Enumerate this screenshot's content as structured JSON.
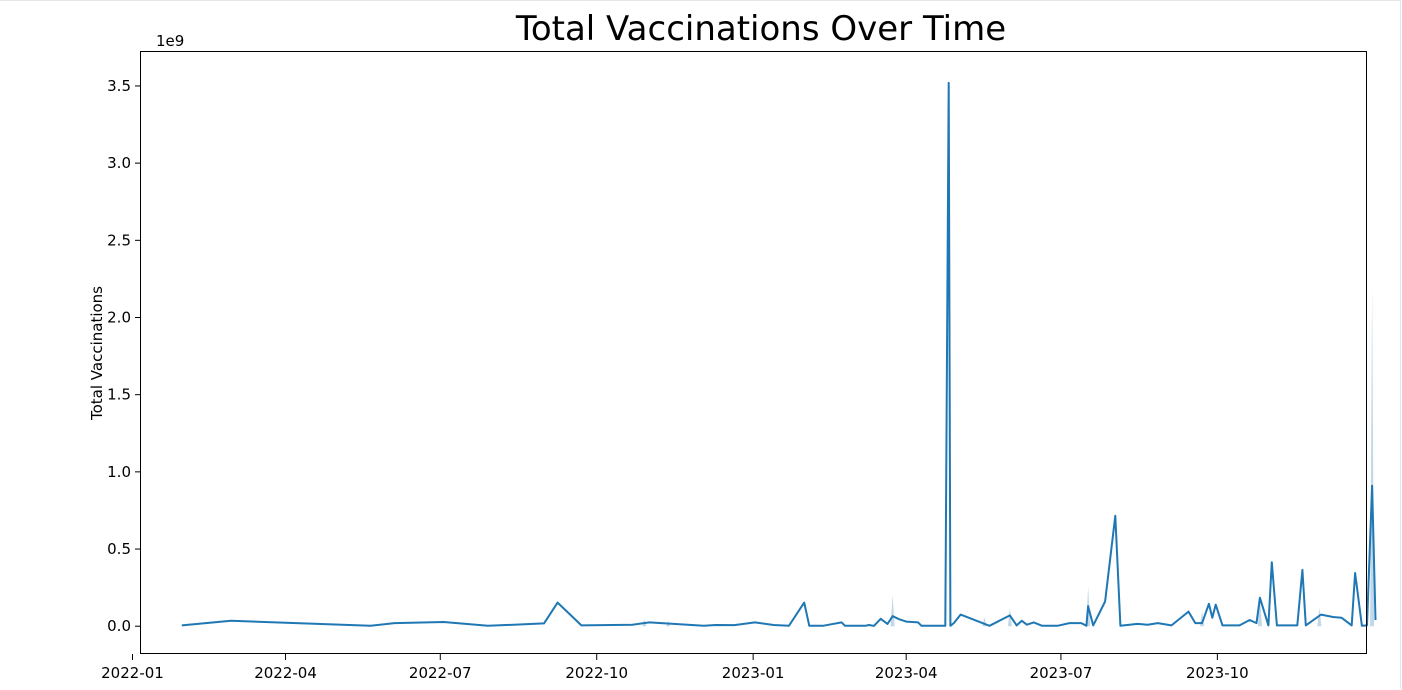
{
  "chart_data": {
    "type": "line",
    "title": "Total Vaccinations Over Time",
    "xlabel": "",
    "ylabel": "Total Vaccinations",
    "y_offset_label": "1e9",
    "xlim": [
      "2022-01-06",
      "2023-12-28"
    ],
    "ylim": [
      -0.18,
      3.72
    ],
    "x_ticks": [
      "2022-01",
      "2022-04",
      "2022-07",
      "2022-10",
      "2023-01",
      "2023-04",
      "2023-07",
      "2023-10"
    ],
    "y_ticks": [
      "0.0",
      "0.5",
      "1.0",
      "1.5",
      "2.0",
      "2.5",
      "3.0",
      "3.5"
    ],
    "grid": false,
    "line_color": "#1f77b4",
    "band_color": "#a6c8e0",
    "series": [
      {
        "points": [
          [
            "2022-01-30",
            0.005
          ],
          [
            "2022-02-28",
            0.035
          ],
          [
            "2022-05-21",
            0.003
          ],
          [
            "2022-06-04",
            0.02
          ],
          [
            "2022-07-03",
            0.027
          ],
          [
            "2022-07-29",
            0.003
          ],
          [
            "2022-08-31",
            0.018
          ],
          [
            "2022-09-08",
            0.153
          ],
          [
            "2022-09-22",
            0.005
          ],
          [
            "2022-10-22",
            0.01
          ],
          [
            "2022-11-01",
            0.025
          ],
          [
            "2022-12-03",
            0.003
          ],
          [
            "2022-12-10",
            0.008
          ],
          [
            "2022-12-21",
            0.007
          ],
          [
            "2023-01-02",
            0.025
          ],
          [
            "2023-01-13",
            0.008
          ],
          [
            "2023-01-22",
            0.003
          ],
          [
            "2023-01-31",
            0.153
          ],
          [
            "2023-02-03",
            0.003
          ],
          [
            "2023-02-11",
            0.003
          ],
          [
            "2023-02-22",
            0.025
          ],
          [
            "2023-02-24",
            0.003
          ],
          [
            "2023-03-08",
            0.003
          ],
          [
            "2023-03-10",
            0.008
          ],
          [
            "2023-03-13",
            0.002
          ],
          [
            "2023-03-17",
            0.048
          ],
          [
            "2023-03-21",
            0.015
          ],
          [
            "2023-03-24",
            0.065
          ],
          [
            "2023-03-28",
            0.045
          ],
          [
            "2023-04-01",
            0.03
          ],
          [
            "2023-04-08",
            0.025
          ],
          [
            "2023-04-10",
            0.003
          ],
          [
            "2023-04-24",
            0.003
          ],
          [
            "2023-04-26",
            3.52
          ],
          [
            "2023-04-27",
            0.003
          ],
          [
            "2023-04-29",
            0.02
          ],
          [
            "2023-05-03",
            0.075
          ],
          [
            "2023-05-20",
            0.003
          ],
          [
            "2023-06-01",
            0.07
          ],
          [
            "2023-06-05",
            0.005
          ],
          [
            "2023-06-08",
            0.035
          ],
          [
            "2023-06-11",
            0.01
          ],
          [
            "2023-06-15",
            0.025
          ],
          [
            "2023-06-20",
            0.003
          ],
          [
            "2023-06-29",
            0.003
          ],
          [
            "2023-07-06",
            0.02
          ],
          [
            "2023-07-13",
            0.02
          ],
          [
            "2023-07-16",
            0.003
          ],
          [
            "2023-07-17",
            0.13
          ],
          [
            "2023-07-20",
            0.005
          ],
          [
            "2023-07-27",
            0.16
          ],
          [
            "2023-08-02",
            0.715
          ],
          [
            "2023-08-05",
            0.003
          ],
          [
            "2023-08-15",
            0.015
          ],
          [
            "2023-08-21",
            0.01
          ],
          [
            "2023-08-27",
            0.02
          ],
          [
            "2023-09-04",
            0.005
          ],
          [
            "2023-09-14",
            0.095
          ],
          [
            "2023-09-18",
            0.02
          ],
          [
            "2023-09-22",
            0.02
          ],
          [
            "2023-09-26",
            0.145
          ],
          [
            "2023-09-28",
            0.055
          ],
          [
            "2023-09-30",
            0.14
          ],
          [
            "2023-10-04",
            0.005
          ],
          [
            "2023-10-14",
            0.005
          ],
          [
            "2023-10-20",
            0.04
          ],
          [
            "2023-10-24",
            0.02
          ],
          [
            "2023-10-26",
            0.185
          ],
          [
            "2023-10-31",
            0.005
          ],
          [
            "2023-11-02",
            0.415
          ],
          [
            "2023-11-05",
            0.005
          ],
          [
            "2023-11-09",
            0.005
          ],
          [
            "2023-11-17",
            0.005
          ],
          [
            "2023-11-20",
            0.365
          ],
          [
            "2023-11-22",
            0.005
          ],
          [
            "2023-12-01",
            0.075
          ],
          [
            "2023-12-08",
            0.06
          ],
          [
            "2023-12-13",
            0.055
          ],
          [
            "2023-12-19",
            0.005
          ],
          [
            "2023-12-21",
            0.345
          ],
          [
            "2023-12-25",
            0.003
          ],
          [
            "2023-12-28",
            0.005
          ],
          [
            "2023-12-31",
            0.91
          ],
          [
            "2024-01-02",
            0.04
          ]
        ],
        "band": [
          [
            "2022-10-29",
            0.0,
            0.045
          ],
          [
            "2022-11-12",
            0.0,
            0.035
          ],
          [
            "2023-03-24",
            0.0,
            0.2
          ],
          [
            "2023-05-17",
            0.0,
            0.06
          ],
          [
            "2023-06-01",
            0.0,
            0.12
          ],
          [
            "2023-07-17",
            0.0,
            0.26
          ],
          [
            "2023-09-22",
            0.0,
            0.1
          ],
          [
            "2023-10-26",
            0.0,
            0.21
          ],
          [
            "2023-11-30",
            0.0,
            0.12
          ],
          [
            "2023-12-31",
            0.0,
            2.22
          ]
        ]
      }
    ]
  }
}
